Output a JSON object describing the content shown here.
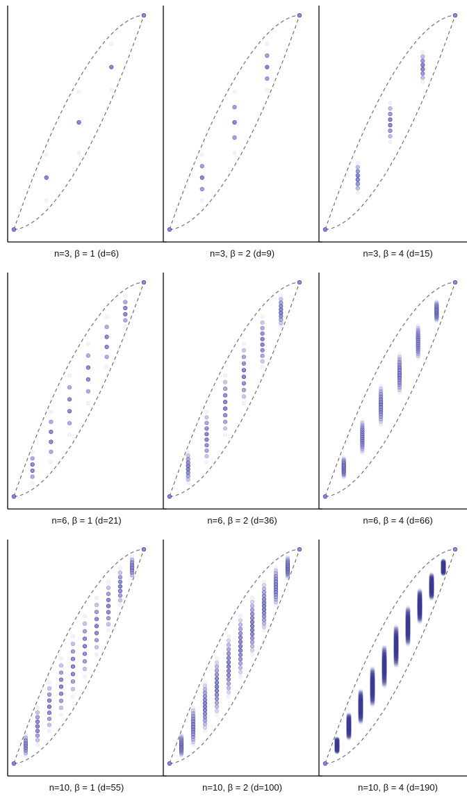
{
  "chart_data": [
    {
      "type": "scatter",
      "caption": "n=3,  β = 1  (d=6)",
      "n": 3,
      "beta": 1,
      "d": 6
    },
    {
      "type": "scatter",
      "caption": "n=3,  β = 2  (d=9)",
      "n": 3,
      "beta": 2,
      "d": 9
    },
    {
      "type": "scatter",
      "caption": "n=3,  β = 4  (d=15)",
      "n": 3,
      "beta": 4,
      "d": 15
    },
    {
      "type": "scatter",
      "caption": "n=6,  β = 1  (d=21)",
      "n": 6,
      "beta": 1,
      "d": 21
    },
    {
      "type": "scatter",
      "caption": "n=6,  β = 2  (d=36)",
      "n": 6,
      "beta": 2,
      "d": 36
    },
    {
      "type": "scatter",
      "caption": "n=6,  β = 4  (d=66)",
      "n": 6,
      "beta": 4,
      "d": 66
    },
    {
      "type": "scatter",
      "caption": "n=10,  β = 1  (d=55)",
      "n": 10,
      "beta": 1,
      "d": 55
    },
    {
      "type": "scatter",
      "caption": "n=10,  β = 2  (d=100)",
      "n": 10,
      "beta": 2,
      "d": 100
    },
    {
      "type": "scatter",
      "caption": "n=10,  β = 4  (d=190)",
      "n": 10,
      "beta": 4,
      "d": 190
    }
  ],
  "colors": {
    "point_fill": "#8c8ad6",
    "point_stroke": "#3b3a8c",
    "dense_fill": "#3a3a96",
    "envelope": "#707070",
    "axis": "#000000"
  }
}
